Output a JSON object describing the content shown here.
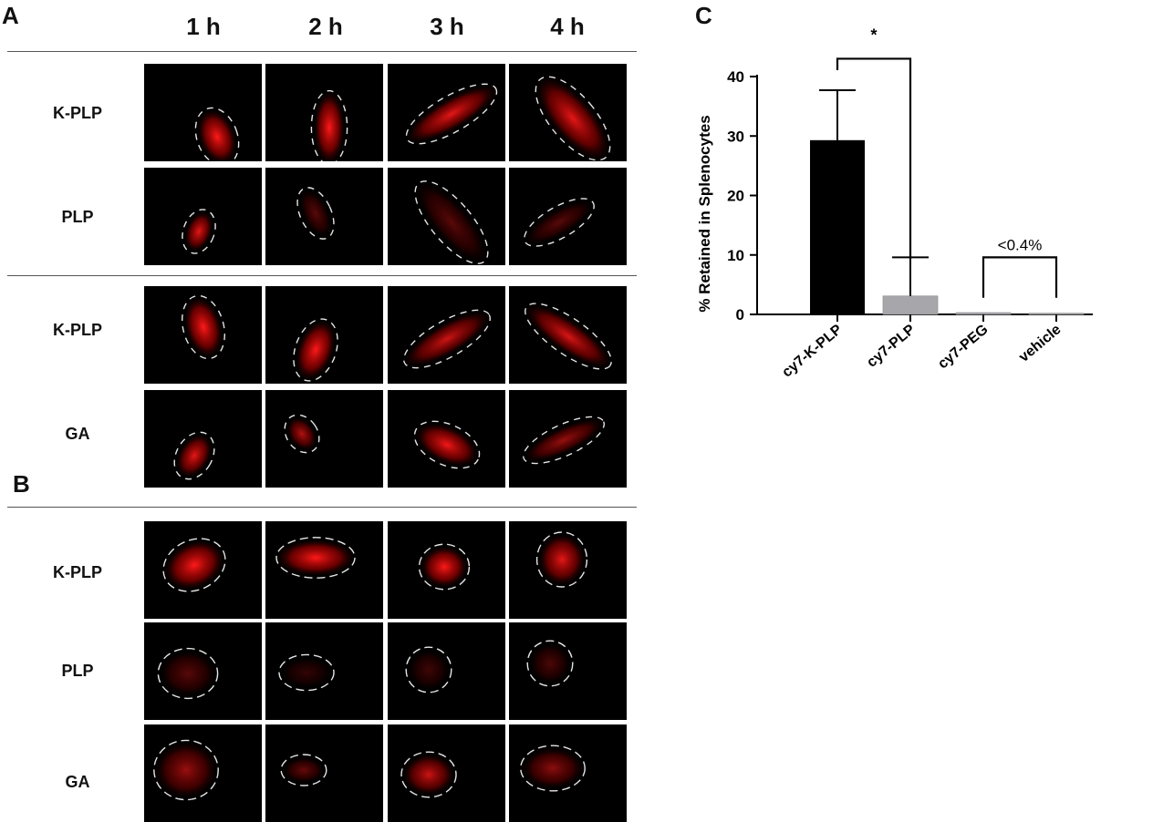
{
  "panels": {
    "a": "A",
    "b": "B",
    "c": "C"
  },
  "time_points": [
    "1 h",
    "2 h",
    "3 h",
    "4 h"
  ],
  "section_a1_rows": [
    "K-PLP",
    "PLP"
  ],
  "section_a2_rows": [
    "K-PLP",
    "GA"
  ],
  "section_b_rows": [
    "K-PLP",
    "PLP",
    "GA"
  ],
  "colors": {
    "fluorescence": "#ff1a1a",
    "bar_kplp": "#000000",
    "bar_plp": "#a6a6ab"
  },
  "chart_data": {
    "type": "bar",
    "categories": [
      "cy7-K-PLP",
      "cy7-PLP",
      "cy7-PEG",
      "vehicle"
    ],
    "values": [
      29.3,
      3.1,
      0.3,
      0.2
    ],
    "errors": [
      8.4,
      6.5,
      0,
      0
    ],
    "ylabel": "% Retained in  Splenocytes",
    "ylim": [
      0,
      40
    ],
    "yticks": [
      0,
      10,
      20,
      30,
      40
    ],
    "annotations": {
      "sig_star": "*",
      "sig_star_between": [
        "cy7-K-PLP",
        "cy7-PLP"
      ],
      "bracket_text": "<0.4%",
      "bracket_between": [
        "cy7-PEG",
        "vehicle"
      ]
    },
    "grid": false,
    "legend": "none"
  }
}
